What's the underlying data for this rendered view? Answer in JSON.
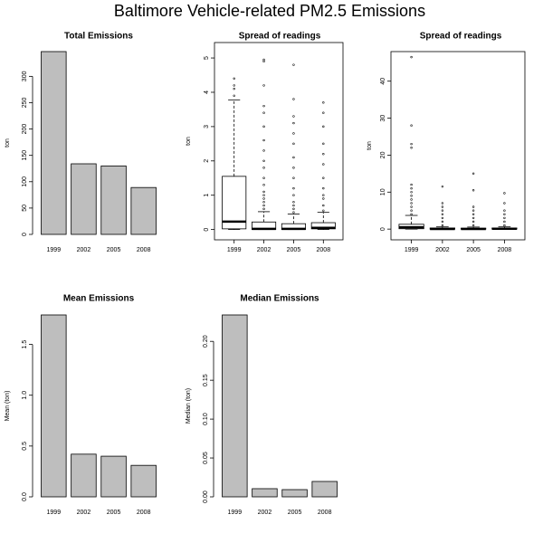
{
  "title": "Baltimore Vehicle-related PM2.5 Emissions",
  "chart_data": [
    {
      "type": "bar",
      "title": "Total Emissions",
      "y_label": "ton",
      "categories": [
        "1999",
        "2002",
        "2005",
        "2008"
      ],
      "values": [
        347,
        134,
        130,
        89
      ],
      "color": "#bebebe",
      "ylim": [
        0,
        347
      ],
      "yticks": [
        0,
        50,
        100,
        150,
        200,
        250,
        300
      ]
    },
    {
      "type": "box",
      "title": "Spread of readings",
      "y_label": "ton",
      "categories": [
        "1999",
        "2002",
        "2005",
        "2008"
      ],
      "boxes": [
        {
          "whisker_low": 0,
          "q1": 0.02,
          "median": 0.23,
          "q3": 1.55,
          "whisker_high": 3.78,
          "outliers": [
            3.9,
            4.1,
            4.2,
            4.4
          ]
        },
        {
          "whisker_low": 0,
          "q1": 0,
          "median": 0.02,
          "q3": 0.22,
          "whisker_high": 0.52,
          "outliers": [
            0.6,
            0.7,
            0.8,
            0.9,
            1.0,
            1.1,
            1.3,
            1.5,
            1.8,
            2.0,
            2.3,
            2.6,
            3.0,
            3.4,
            3.6,
            4.2,
            4.9,
            4.95
          ]
        },
        {
          "whisker_low": 0,
          "q1": 0,
          "median": 0.02,
          "q3": 0.17,
          "whisker_high": 0.45,
          "outliers": [
            0.5,
            0.6,
            0.7,
            0.8,
            1.0,
            1.2,
            1.5,
            1.8,
            2.1,
            2.5,
            2.8,
            3.1,
            3.3,
            3.8,
            4.8
          ]
        },
        {
          "whisker_low": 0,
          "q1": 0.02,
          "median": 0.05,
          "q3": 0.2,
          "whisker_high": 0.5,
          "outliers": [
            0.55,
            0.7,
            0.9,
            1.0,
            1.2,
            1.5,
            1.9,
            2.2,
            2.5,
            3.0,
            3.4,
            3.7
          ]
        }
      ],
      "ylim": [
        -0.3,
        5.45
      ],
      "yticks": [
        0,
        1,
        2,
        3,
        4,
        5
      ]
    },
    {
      "type": "box",
      "title": "Spread of readings",
      "y_label": "ton",
      "categories": [
        "1999",
        "2002",
        "2005",
        "2008"
      ],
      "boxes": [
        {
          "whisker_low": 0,
          "q1": 0.1,
          "median": 0.5,
          "q3": 1.3,
          "whisker_high": 3.7,
          "outliers": [
            4,
            5,
            6,
            7,
            8,
            9,
            10,
            11,
            12,
            22,
            23,
            28,
            46.5
          ]
        },
        {
          "whisker_low": 0,
          "q1": 0,
          "median": 0.05,
          "q3": 0.3,
          "whisker_high": 0.6,
          "outliers": [
            1,
            2,
            3,
            4,
            5,
            6,
            7,
            11.5
          ]
        },
        {
          "whisker_low": 0,
          "q1": 0,
          "median": 0.05,
          "q3": 0.25,
          "whisker_high": 0.55,
          "outliers": [
            1,
            2,
            3,
            4,
            5,
            6,
            10.5,
            15
          ]
        },
        {
          "whisker_low": 0,
          "q1": 0.02,
          "median": 0.1,
          "q3": 0.3,
          "whisker_high": 0.6,
          "outliers": [
            1,
            2,
            3,
            4,
            5,
            7,
            9.7
          ]
        }
      ],
      "ylim": [
        -2.9,
        48
      ],
      "yticks": [
        0,
        10,
        20,
        30,
        40
      ]
    },
    {
      "type": "bar",
      "title": "Mean Emissions",
      "y_label": "Mean (ton)",
      "categories": [
        "1999",
        "2002",
        "2005",
        "2008"
      ],
      "values": [
        1.79,
        0.42,
        0.4,
        0.31
      ],
      "color": "#bebebe",
      "ylim": [
        0,
        1.79
      ],
      "yticks": [
        {
          "value": 0,
          "label": "0.0"
        },
        0.5,
        {
          "value": 1,
          "label": "1.0"
        },
        1.5
      ]
    },
    {
      "type": "bar",
      "title": "Median Emissions",
      "y_label": "Median (ton)",
      "categories": [
        "1999",
        "2002",
        "2005",
        "2008"
      ],
      "values": [
        0.234,
        0.0105,
        0.0093,
        0.0198
      ],
      "color": "#bebebe",
      "ylim": [
        0,
        0.234
      ],
      "yticks": [
        {
          "value": 0,
          "label": "0.00"
        },
        0.05,
        {
          "value": 0.1,
          "label": "0.10"
        },
        0.15,
        {
          "value": 0.2,
          "label": "0.20"
        }
      ]
    }
  ]
}
